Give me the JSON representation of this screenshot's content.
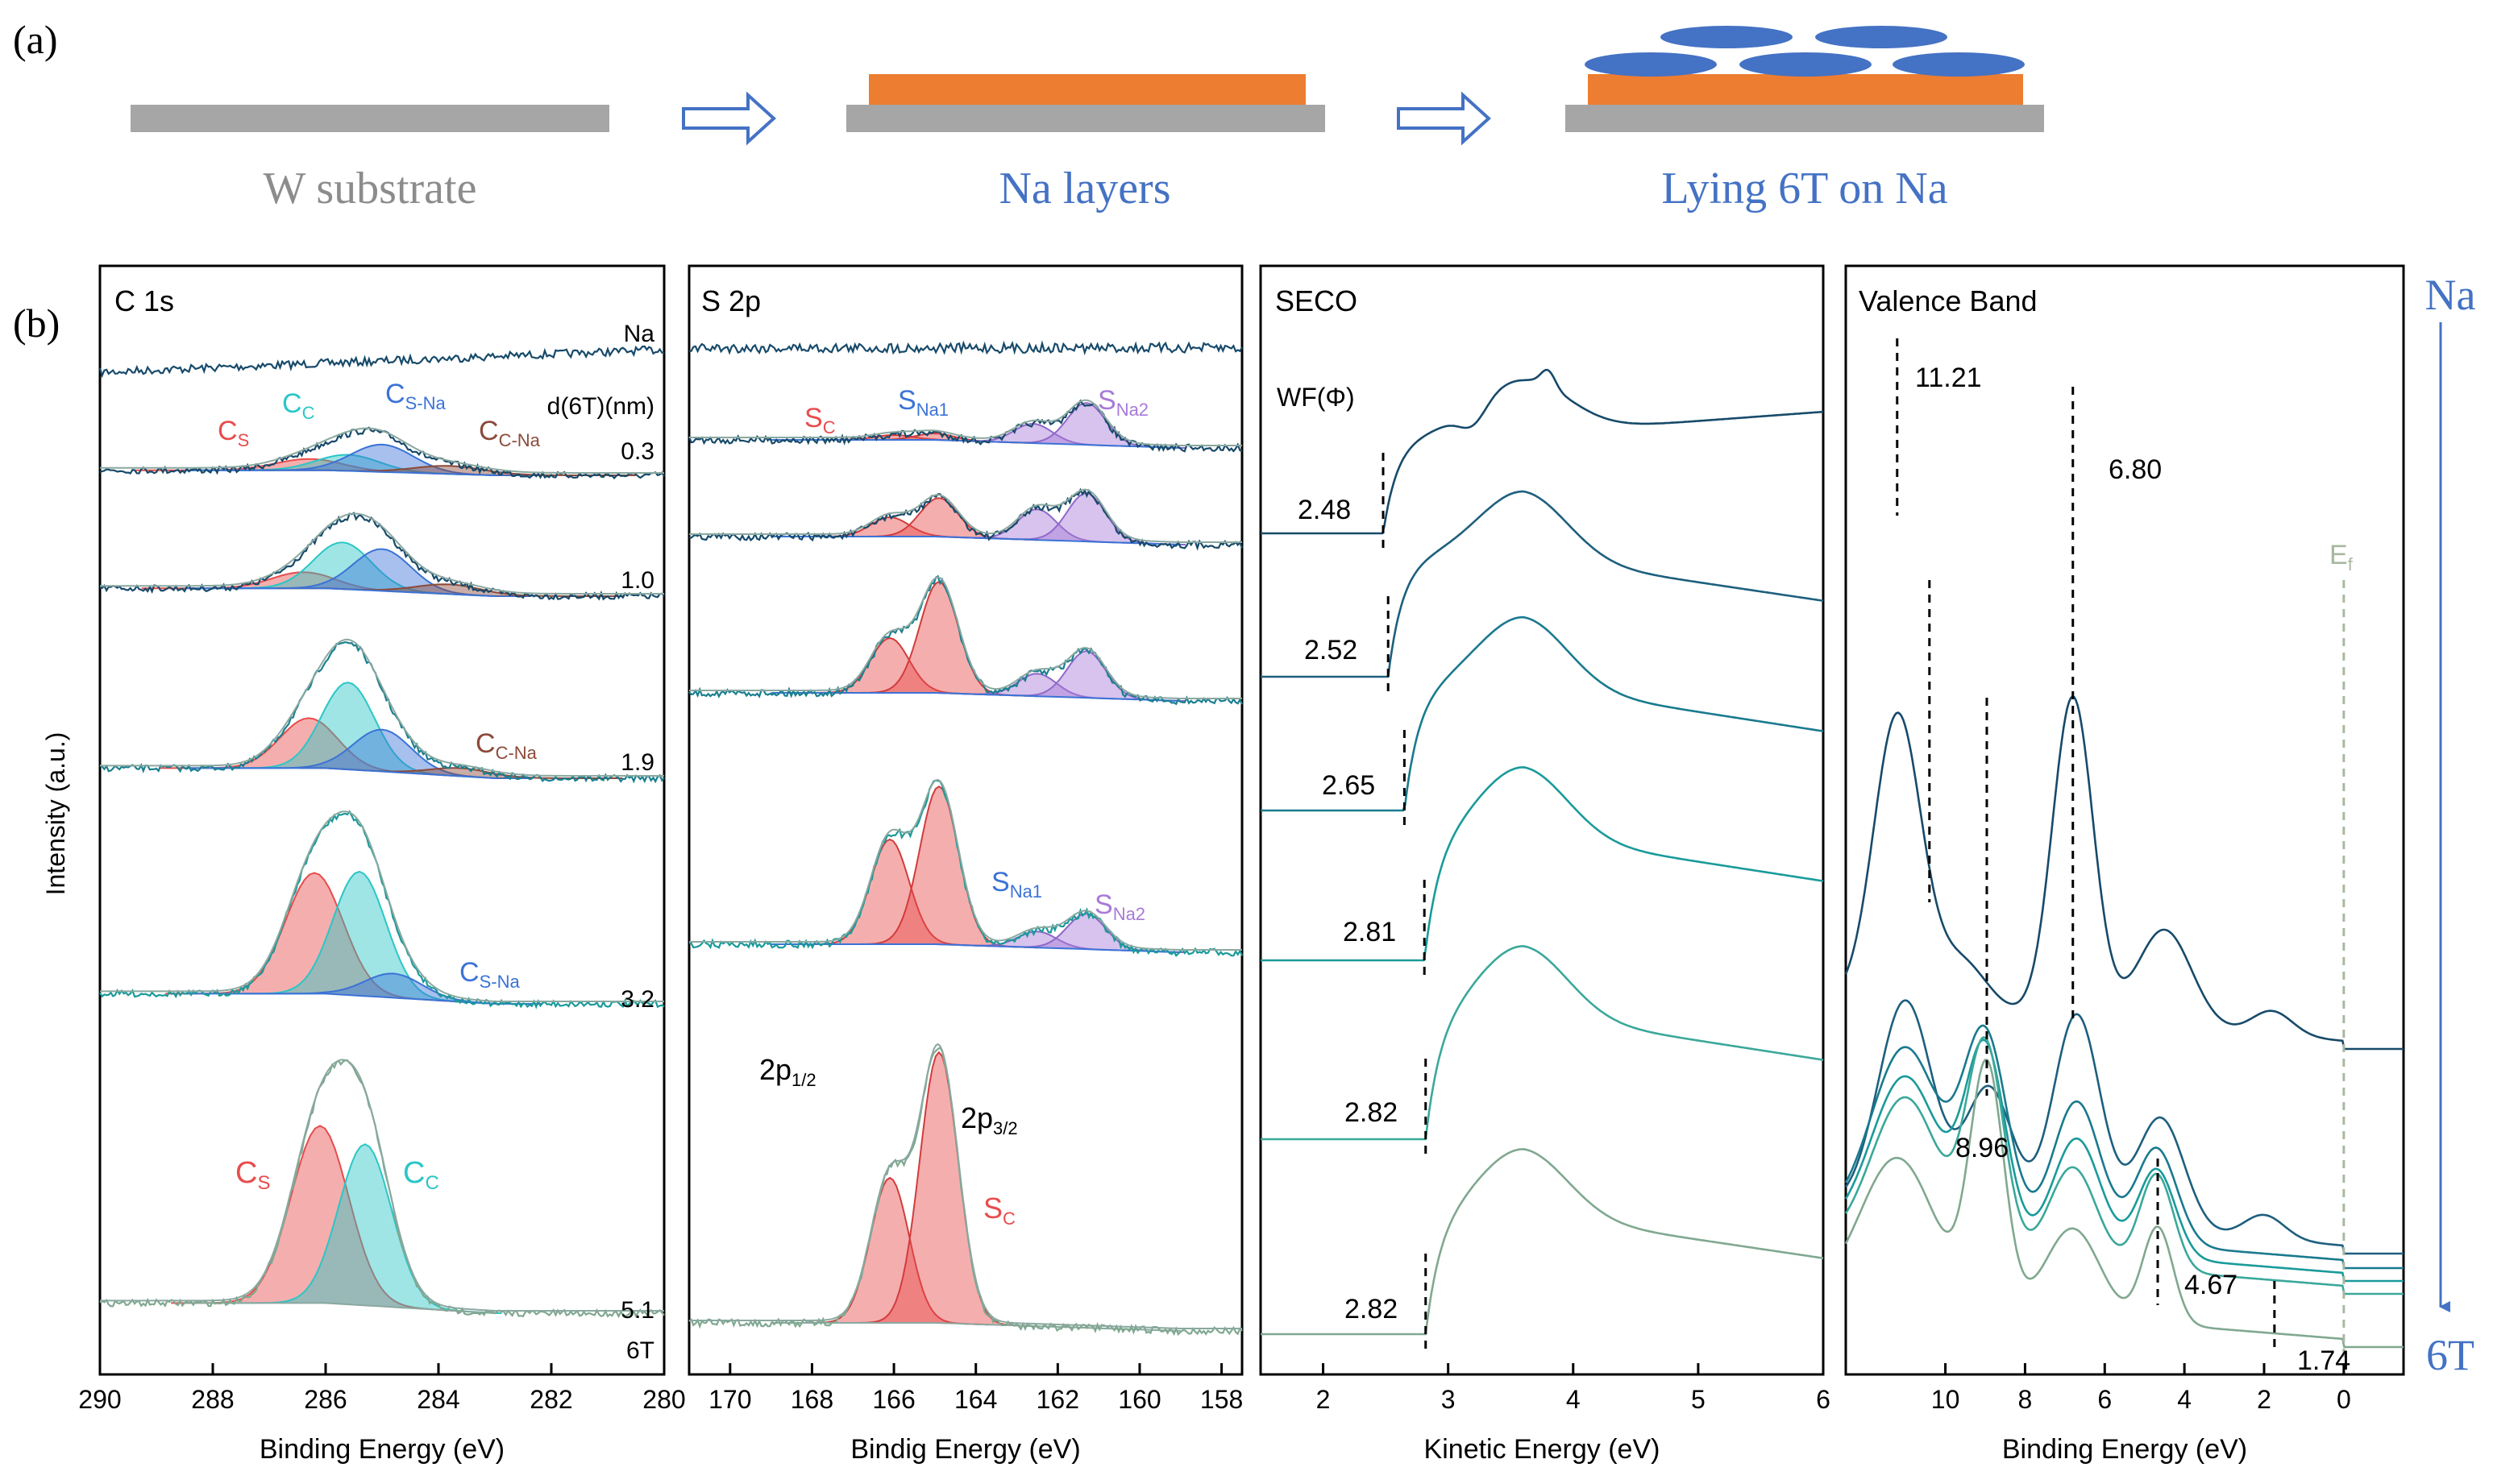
{
  "colors": {
    "substrate": "#a6a6a6",
    "na_layer": "#ed7d31",
    "molecule": "#4472c4",
    "arrow": "#4472c4",
    "gray_text": "#8c8c8c",
    "blue_text": "#4472c4",
    "c_s": "#e84c4c",
    "c_c": "#2bc6c6",
    "c_sna": "#3b73d6",
    "c_cna": "#8b4a3a",
    "s_na2": "#a77ad8",
    "teal_dark": "#174a6a",
    "teal_mid": "#1a9a9a",
    "teal_light": "#80a890",
    "ef": "#a8b8a0"
  },
  "panel_a": {
    "label": "(a)",
    "steps": [
      "W substrate",
      "Na layers",
      "Lying 6T on Na"
    ]
  },
  "panel_b": {
    "label": "(b)",
    "y_axis_label": "Intensity (a.u.)",
    "series_direction": {
      "top": "Na",
      "bottom": "6T"
    }
  },
  "chart_data": [
    {
      "type": "line",
      "title": "C 1s",
      "xlabel": "Binding Energy (eV)",
      "xlim": [
        290,
        280
      ],
      "xticks": [
        290,
        288,
        286,
        284,
        282,
        280
      ],
      "thickness_header": "d(6T)(nm)",
      "series_labels": [
        "Na",
        "0.3",
        "1.0",
        "1.9",
        "3.2",
        "5.1",
        "6T"
      ],
      "component_labels": {
        "c_s": "C",
        "c_s_sub": "S",
        "c_c": "C",
        "c_c_sub": "C",
        "c_sna": "C",
        "c_sna_sub": "S-Na",
        "c_cna": "C",
        "c_cna_sub": "C-Na"
      },
      "components": [
        {
          "name": "C_S",
          "center": 286.1,
          "fwhm": 1.2
        },
        {
          "name": "C_C",
          "center": 285.4,
          "fwhm": 1.1
        },
        {
          "name": "C_S-Na",
          "center": 284.9,
          "fwhm": 1.2
        },
        {
          "name": "C_C-Na",
          "center": 283.6,
          "fwhm": 1.4
        }
      ]
    },
    {
      "type": "line",
      "title": "S 2p",
      "xlabel": "Bindig Energy (eV)",
      "xlim": [
        171,
        157.5
      ],
      "xticks": [
        170,
        168,
        166,
        164,
        162,
        160,
        158
      ],
      "component_labels": {
        "s": "S",
        "s_c_sub": "C",
        "s_na1_sub": "Na1",
        "s_na2_sub": "Na2",
        "two_p": "2p",
        "p12_sub": "1/2",
        "p32_sub": "3/2"
      },
      "components": [
        {
          "name": "S_C 2p3/2",
          "center": 164.9,
          "fwhm": 1.1
        },
        {
          "name": "S_C 2p1/2",
          "center": 166.1,
          "fwhm": 1.1
        },
        {
          "name": "S_Na1",
          "center": 162.6,
          "fwhm": 1.1
        },
        {
          "name": "S_Na2",
          "center": 161.3,
          "fwhm": 1.1
        }
      ]
    },
    {
      "type": "line",
      "title": "SECO",
      "xlabel": "Kinetic Energy (eV)",
      "xlim": [
        1.5,
        6
      ],
      "xticks": [
        2,
        3,
        4,
        5,
        6
      ],
      "wf_header": "WF(Φ)",
      "work_functions": [
        2.48,
        2.52,
        2.65,
        2.81,
        2.82,
        2.82
      ],
      "wf_labels": [
        "2.48",
        "2.52",
        "2.65",
        "2.81",
        "2.82",
        "2.82"
      ]
    },
    {
      "type": "line",
      "title": "Valence Band",
      "xlabel": "Binding Energy (eV)",
      "xlim": [
        12.5,
        -1.5
      ],
      "xticks": [
        10,
        8,
        6,
        4,
        2,
        0
      ],
      "peaks": [
        11.21,
        6.8,
        8.96,
        4.67,
        1.74
      ],
      "peak_labels": [
        "11.21",
        "6.80",
        "8.96",
        "4.67",
        "1.74"
      ],
      "fermi_label": "E",
      "fermi_sub": "f"
    }
  ]
}
